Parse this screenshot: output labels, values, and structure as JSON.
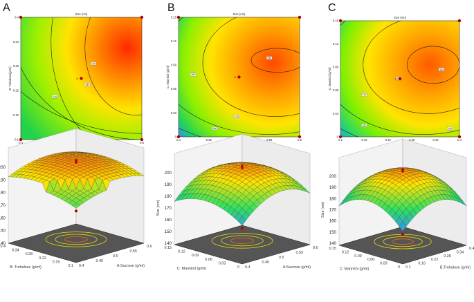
{
  "panel_letters": [
    "A",
    "B",
    "C"
  ],
  "colors": {
    "surface_low": "#2f8cff",
    "surface_mid": "#2fe060",
    "surface_high": "#ffe400",
    "surface_top": "#ff2a00",
    "design_point": "#b00000",
    "floor": "#555555",
    "contour_line": "#222222"
  },
  "chart_data": [
    {
      "type": "contour",
      "panel": "A",
      "title": "Size (nm)",
      "xlabel": "A:Sucrose (g/ml)",
      "ylabel": "B: Trehalose(g/ml)",
      "xticks": [
        "0.4",
        "0.45",
        "0.5",
        "0.55",
        "0.6"
      ],
      "yticks": [
        "0.1",
        "0.16",
        "0.22",
        "0.28",
        "0.34",
        "0.4"
      ],
      "xlim": [
        0.4,
        0.6
      ],
      "ylim": [
        0.1,
        0.4
      ],
      "center_label": "6",
      "contours": [
        {
          "label": "190",
          "value": 190
        },
        {
          "label": "180",
          "value": 180
        },
        {
          "label": "170",
          "value": 170
        },
        {
          "label": "160",
          "value": 160
        }
      ]
    },
    {
      "type": "contour",
      "panel": "B",
      "title": "Size (nm)",
      "xlabel": "A:Sucrose (g/ml)",
      "ylabel": "C: Mannitol (g/ml)",
      "xticks": [
        "0.4",
        "0.45",
        "0.5",
        "0.55",
        "0.6"
      ],
      "yticks": [
        "0",
        "0.03",
        "0.06",
        "0.09",
        "0.12",
        "0.15"
      ],
      "xlim": [
        0.4,
        0.6
      ],
      "ylim": [
        0,
        0.15
      ],
      "center_label": "6",
      "contours": [
        {
          "label": "190",
          "value": 190
        },
        {
          "label": "180",
          "value": 180
        },
        {
          "label": "170",
          "value": 170
        },
        {
          "label": "160",
          "value": 160
        }
      ]
    },
    {
      "type": "contour",
      "panel": "C",
      "title": "Size (nm)",
      "xlabel": "B: Trehalose (g/ml)",
      "ylabel": "C: Mannitol (g/ml)",
      "xticks": [
        "0.1",
        "0.16",
        "0.22",
        "0.28",
        "0.34",
        "0.4"
      ],
      "yticks": [
        "0",
        "0.03",
        "0.06",
        "0.09",
        "0.12",
        "0.15"
      ],
      "xlim": [
        0.1,
        0.4
      ],
      "ylim": [
        0,
        0.15
      ],
      "center_label": "6",
      "contours": [
        {
          "label": "190",
          "value": 190
        },
        {
          "label": "180",
          "value": 180
        },
        {
          "label": "170",
          "value": 170
        },
        {
          "label": "160",
          "value": 160
        },
        {
          "label": "150",
          "value": 150
        }
      ]
    },
    {
      "type": "surface3d",
      "panel": "A",
      "zlabel": "Size (nm)",
      "zticks": [
        "140",
        "150",
        "160",
        "170",
        "180",
        "190",
        "200"
      ],
      "zlim": [
        140,
        200
      ],
      "left_axis_label": "B: Trehalose (g/ml)",
      "left_axis_ticks": [
        "0.1",
        "0.16",
        "0.22",
        "0.28",
        "0.34",
        "0.4"
      ],
      "right_axis_label": "A:Sucrose (g/ml)",
      "right_axis_ticks": [
        "0.4",
        "0.45",
        "0.5",
        "0.55",
        "0.6"
      ]
    },
    {
      "type": "surface3d",
      "panel": "B",
      "zlabel": "Size (nm)",
      "zticks": [
        "140",
        "150",
        "160",
        "170",
        "180",
        "190",
        "200"
      ],
      "zlim": [
        140,
        200
      ],
      "left_axis_label": "C: Mannitol (g/ml)",
      "left_axis_ticks": [
        "0",
        "0.03",
        "0.06",
        "0.09",
        "0.12",
        "0.15"
      ],
      "right_axis_label": "A:Sucrose (g/ml)",
      "right_axis_ticks": [
        "0.4",
        "0.45",
        "0.5",
        "0.55",
        "0.6"
      ]
    },
    {
      "type": "surface3d",
      "panel": "C",
      "zlabel": "Size (nm)",
      "zticks": [
        "140",
        "150",
        "160",
        "170",
        "180",
        "190",
        "200"
      ],
      "zlim": [
        140,
        200
      ],
      "left_axis_label": "C: Mannitol (g/ml)",
      "left_axis_ticks": [
        "0",
        "0.03",
        "0.06",
        "0.09",
        "0.12",
        "0.15"
      ],
      "right_axis_label": "B:Trehalose (g/ml)",
      "right_axis_ticks": [
        "0.1",
        "0.16",
        "0.22",
        "0.28",
        "0.34",
        "0.4"
      ]
    }
  ]
}
